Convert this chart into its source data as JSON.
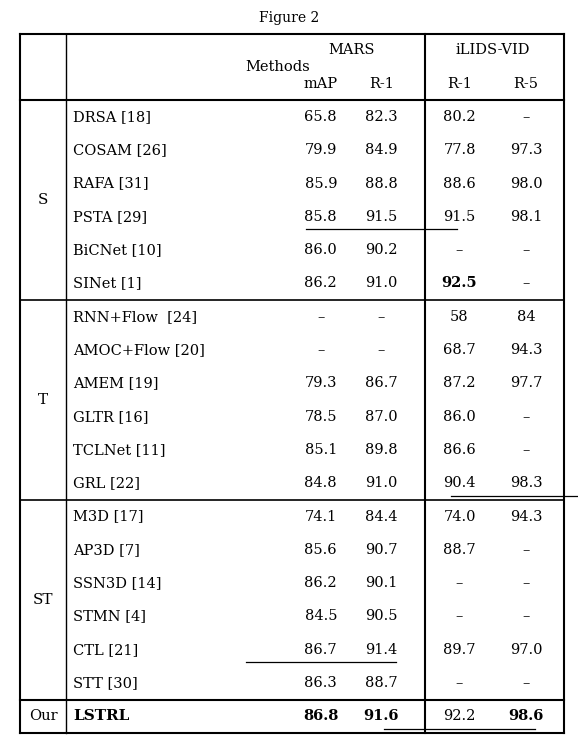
{
  "sections": [
    {
      "label": "S",
      "rows": [
        {
          "method": "DRSA [18]",
          "vals": [
            "65.8",
            "82.3",
            "80.2",
            "–"
          ],
          "bold": [],
          "underline": []
        },
        {
          "method": "COSAM [26]",
          "vals": [
            "79.9",
            "84.9",
            "77.8",
            "97.3"
          ],
          "bold": [],
          "underline": []
        },
        {
          "method": "RAFA [31]",
          "vals": [
            "85.9",
            "88.8",
            "88.6",
            "98.0"
          ],
          "bold": [],
          "underline": []
        },
        {
          "method": "PSTA [29]",
          "vals": [
            "85.8",
            "91.5",
            "91.5",
            "98.1"
          ],
          "bold": [],
          "underline": [
            1
          ]
        },
        {
          "method": "BiCNet [10]",
          "vals": [
            "86.0",
            "90.2",
            "–",
            "–"
          ],
          "bold": [],
          "underline": []
        },
        {
          "method": "SINet [1]",
          "vals": [
            "86.2",
            "91.0",
            "92.5",
            "–"
          ],
          "bold": [
            2
          ],
          "underline": []
        }
      ]
    },
    {
      "label": "T",
      "rows": [
        {
          "method": "RNN+Flow  [24]",
          "vals": [
            "–",
            "–",
            "58",
            "84"
          ],
          "bold": [],
          "underline": []
        },
        {
          "method": "AMOC+Flow [20]",
          "vals": [
            "–",
            "–",
            "68.7",
            "94.3"
          ],
          "bold": [],
          "underline": []
        },
        {
          "method": "AMEM [19]",
          "vals": [
            "79.3",
            "86.7",
            "87.2",
            "97.7"
          ],
          "bold": [],
          "underline": []
        },
        {
          "method": "GLTR [16]",
          "vals": [
            "78.5",
            "87.0",
            "86.0",
            "–"
          ],
          "bold": [],
          "underline": []
        },
        {
          "method": "TCLNet [11]",
          "vals": [
            "85.1",
            "89.8",
            "86.6",
            "–"
          ],
          "bold": [],
          "underline": []
        },
        {
          "method": "GRL [22]",
          "vals": [
            "84.8",
            "91.0",
            "90.4",
            "98.3"
          ],
          "bold": [],
          "underline": [
            3
          ]
        }
      ]
    },
    {
      "label": "ST",
      "rows": [
        {
          "method": "M3D [17]",
          "vals": [
            "74.1",
            "84.4",
            "74.0",
            "94.3"
          ],
          "bold": [],
          "underline": []
        },
        {
          "method": "AP3D [7]",
          "vals": [
            "85.6",
            "90.7",
            "88.7",
            "–"
          ],
          "bold": [],
          "underline": []
        },
        {
          "method": "SSN3D [14]",
          "vals": [
            "86.2",
            "90.1",
            "–",
            "–"
          ],
          "bold": [],
          "underline": []
        },
        {
          "method": "STMN [4]",
          "vals": [
            "84.5",
            "90.5",
            "–",
            "–"
          ],
          "bold": [],
          "underline": []
        },
        {
          "method": "CTL [21]",
          "vals": [
            "86.7",
            "91.4",
            "89.7",
            "97.0"
          ],
          "bold": [],
          "underline": [
            0
          ]
        },
        {
          "method": "STT [30]",
          "vals": [
            "86.3",
            "88.7",
            "–",
            "–"
          ],
          "bold": [],
          "underline": []
        }
      ]
    }
  ],
  "our_row": {
    "label": "Our",
    "method": "LSTRL",
    "vals": [
      "86.8",
      "91.6",
      "92.2",
      "98.6"
    ],
    "bold_method": true,
    "bold": [
      0,
      1,
      3
    ],
    "underline": [
      2
    ]
  },
  "figsize": [
    5.78,
    7.48
  ],
  "dpi": 100
}
